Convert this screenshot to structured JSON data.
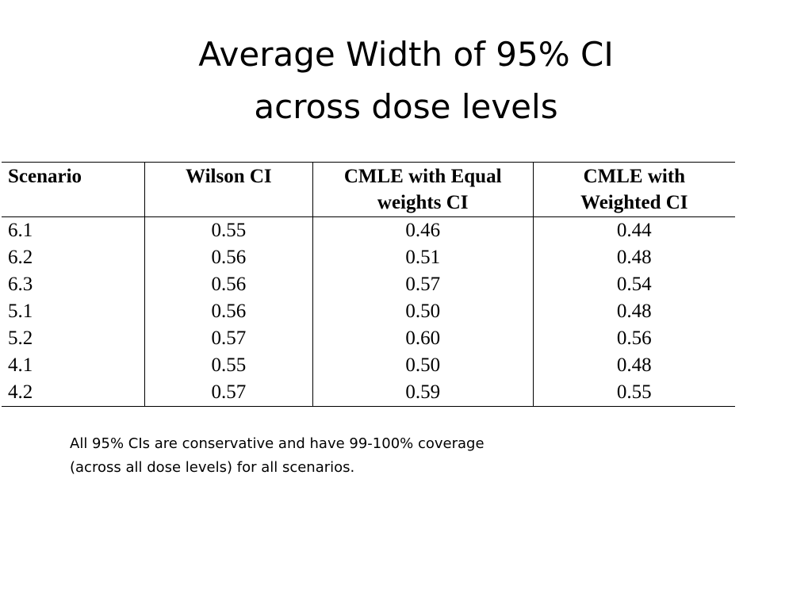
{
  "slide": {
    "title_line1": "Average Width of 95% CI",
    "title_line2": "across dose levels"
  },
  "table": {
    "headers": [
      "Scenario",
      "Wilson CI",
      "CMLE with Equal weights CI",
      "CMLE with Weighted CI"
    ],
    "header_lines": {
      "h3_line1": "CMLE with Equal",
      "h3_line2": "weights CI",
      "h4_line1": "CMLE with",
      "h4_line2": "Weighted CI"
    },
    "rows": [
      {
        "scenario": "6.1",
        "wilson": "0.55",
        "cmle_equal": "0.46",
        "cmle_weighted": "0.44"
      },
      {
        "scenario": "6.2",
        "wilson": "0.56",
        "cmle_equal": "0.51",
        "cmle_weighted": "0.48"
      },
      {
        "scenario": "6.3",
        "wilson": "0.56",
        "cmle_equal": "0.57",
        "cmle_weighted": "0.54"
      },
      {
        "scenario": "5.1",
        "wilson": "0.56",
        "cmle_equal": "0.50",
        "cmle_weighted": "0.48"
      },
      {
        "scenario": "5.2",
        "wilson": "0.57",
        "cmle_equal": "0.60",
        "cmle_weighted": "0.56"
      },
      {
        "scenario": "4.1",
        "wilson": "0.55",
        "cmle_equal": "0.50",
        "cmle_weighted": "0.48"
      },
      {
        "scenario": "4.2",
        "wilson": "0.57",
        "cmle_equal": "0.59",
        "cmle_weighted": "0.55"
      }
    ]
  },
  "footnote": {
    "line1": "All 95% CIs are conservative and have 99-100% coverage",
    "line2": "(across all dose levels) for all scenarios."
  }
}
